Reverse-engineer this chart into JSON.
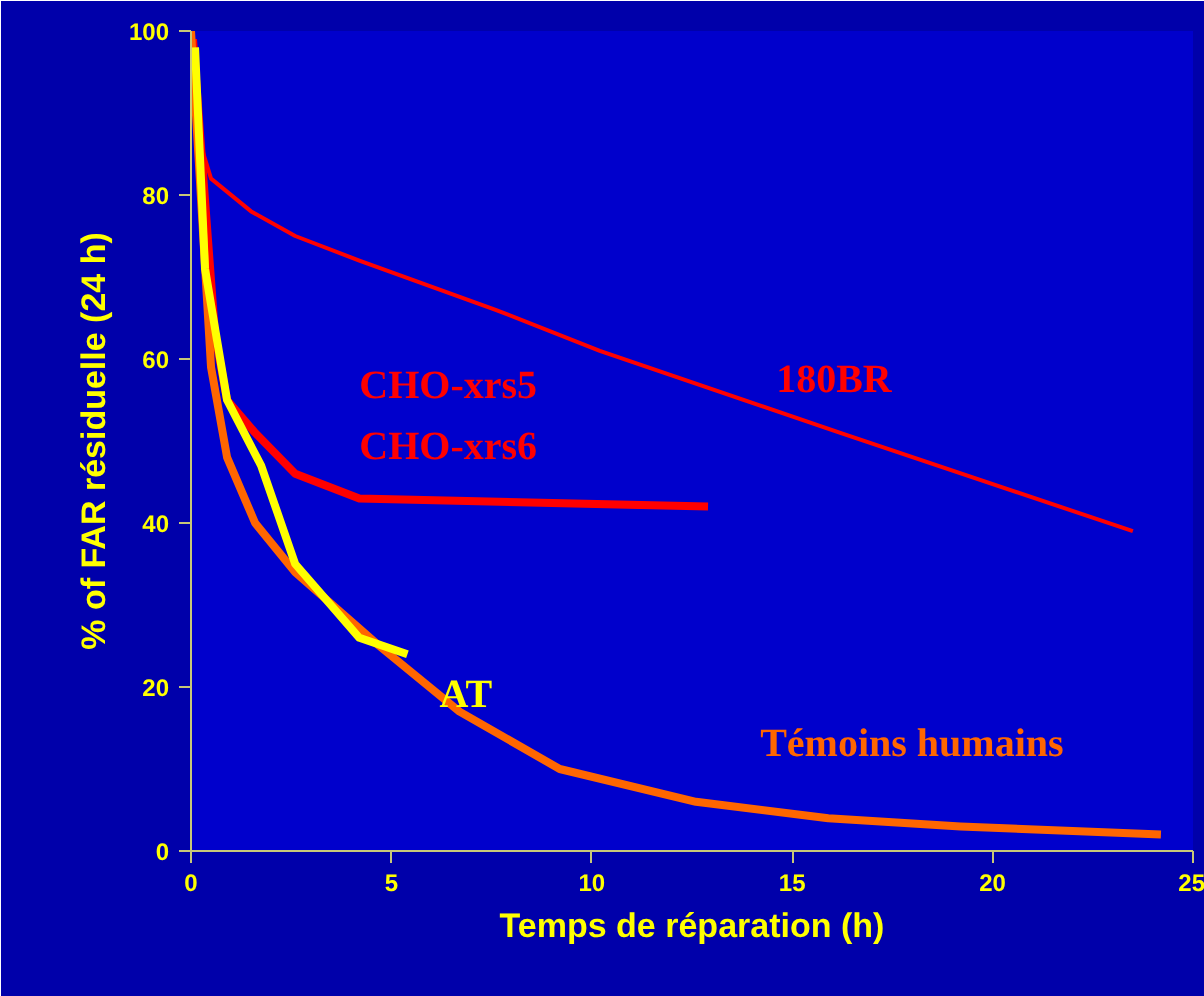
{
  "chart_data": {
    "type": "line",
    "xlabel": "Temps de réparation (h)",
    "ylabel": "% of FAR résiduelle (24 h)",
    "xlim": [
      0,
      25
    ],
    "ylim": [
      0,
      100
    ],
    "xticks": [
      0,
      5,
      10,
      15,
      20,
      25
    ],
    "yticks": [
      0,
      20,
      40,
      60,
      80,
      100
    ],
    "grid": false,
    "legend": false,
    "marker": "none",
    "line_style": "solid",
    "series": [
      {
        "name": "180BR",
        "color": "#ff0000",
        "x": [
          0,
          0.25,
          0.5,
          1.5,
          2.6,
          4.2,
          7.6,
          10.2,
          16.2,
          23.5
        ],
        "values": [
          99,
          86,
          82,
          78,
          75,
          72,
          66,
          61,
          51,
          39
        ]
      },
      {
        "name": "CHO-xrs5\nCHO-xrs6",
        "color": "#ff0000",
        "x": [
          0.05,
          0.6,
          0.9,
          1.6,
          2.6,
          4.2,
          12.9
        ],
        "values": [
          99,
          63,
          55,
          51,
          46,
          43,
          42
        ]
      },
      {
        "name": "Témoins humains",
        "color": "#ff6600",
        "x": [
          0,
          0.5,
          0.9,
          1.6,
          2.6,
          4.7,
          6.7,
          9.2,
          12.6,
          15.9,
          19.2,
          24.2
        ],
        "values": [
          100,
          59,
          48,
          40,
          34,
          25,
          17,
          10,
          6,
          4,
          3,
          2
        ]
      },
      {
        "name": "AT",
        "color": "#ffff00",
        "x": [
          0.1,
          0.35,
          0.9,
          1.75,
          2.6,
          4.2,
          5.4
        ],
        "values": [
          98,
          71,
          55,
          47,
          35,
          26,
          24
        ]
      }
    ]
  }
}
